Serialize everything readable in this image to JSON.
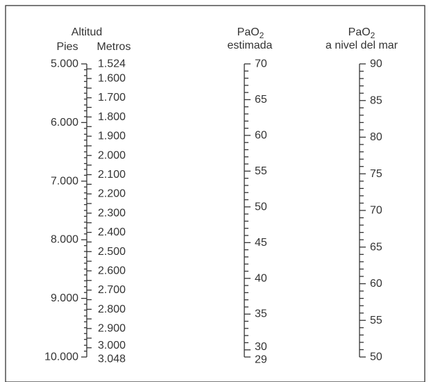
{
  "nomogram": {
    "altitude": {
      "title": "Altitud",
      "feet_label": "Pies",
      "meters_label": "Metros",
      "feet_ticks": [
        "5.000",
        "6.000",
        "7.000",
        "8.000",
        "9.000",
        "10.000"
      ],
      "feet_values": [
        5000,
        6000,
        7000,
        8000,
        9000,
        10000
      ],
      "meter_ticks": [
        "1.524",
        "1.600",
        "1.700",
        "1.800",
        "1.900",
        "2.000",
        "2.100",
        "2.200",
        "2.300",
        "2.400",
        "2.500",
        "2.600",
        "2.700",
        "2.800",
        "2.900",
        "3.000",
        "3.048"
      ],
      "meter_values": [
        1524,
        1600,
        1700,
        1800,
        1900,
        2000,
        2100,
        2200,
        2300,
        2400,
        2500,
        2600,
        2700,
        2800,
        2900,
        3000,
        3048
      ]
    },
    "pao2_est": {
      "title_main": "PaO",
      "title_sub": "2",
      "title_line2": "estimada",
      "ticks": [
        "70",
        "65",
        "60",
        "55",
        "50",
        "45",
        "40",
        "35",
        "30",
        "29"
      ],
      "values": [
        70,
        65,
        60,
        55,
        50,
        45,
        40,
        35,
        30,
        29
      ],
      "range": [
        29,
        70
      ]
    },
    "pao2_sea": {
      "title_main": "PaO",
      "title_sub": "2",
      "title_line2": "a nivel del mar",
      "ticks": [
        "90",
        "85",
        "80",
        "75",
        "70",
        "65",
        "60",
        "55",
        "50"
      ],
      "values": [
        90,
        85,
        80,
        75,
        70,
        65,
        60,
        55,
        50
      ],
      "range": [
        50,
        90
      ]
    }
  }
}
